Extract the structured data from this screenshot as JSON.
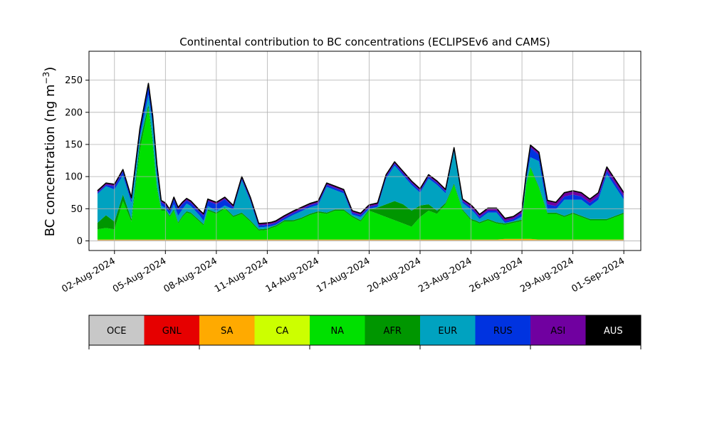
{
  "chart_data": {
    "type": "area",
    "stacked": true,
    "title": "Continental contribution to BC concentrations (ECLIPSEv6 and CAMS)",
    "ylabel": "BC concentration (ng m⁻³)",
    "xlabel": "",
    "ylim": [
      -15,
      295
    ],
    "xlim": [
      "2024-07-31T12:00",
      "2024-09-02T00:00"
    ],
    "y_ticks": [
      0,
      50,
      100,
      150,
      200,
      250
    ],
    "x_ticks": [
      "02-Aug-2024",
      "05-Aug-2024",
      "08-Aug-2024",
      "11-Aug-2024",
      "14-Aug-2024",
      "17-Aug-2024",
      "20-Aug-2024",
      "23-Aug-2024",
      "26-Aug-2024",
      "29-Aug-2024",
      "01-Sep-2024"
    ],
    "grid": true,
    "x": [
      "2024-08-01T00:00",
      "2024-08-01T12:00",
      "2024-08-02T00:00",
      "2024-08-02T12:00",
      "2024-08-03T00:00",
      "2024-08-03T12:00",
      "2024-08-04T00:00",
      "2024-08-04T06:00",
      "2024-08-04T12:00",
      "2024-08-04T18:00",
      "2024-08-05T00:00",
      "2024-08-05T06:00",
      "2024-08-05T12:00",
      "2024-08-05T18:00",
      "2024-08-06T00:00",
      "2024-08-06T06:00",
      "2024-08-06T12:00",
      "2024-08-07T00:00",
      "2024-08-07T06:00",
      "2024-08-07T12:00",
      "2024-08-08T00:00",
      "2024-08-08T12:00",
      "2024-08-09T00:00",
      "2024-08-09T12:00",
      "2024-08-10T00:00",
      "2024-08-10T12:00",
      "2024-08-11T00:00",
      "2024-08-11T06:00",
      "2024-08-11T12:00",
      "2024-08-12T00:00",
      "2024-08-12T12:00",
      "2024-08-13T00:00",
      "2024-08-13T12:00",
      "2024-08-14T00:00",
      "2024-08-14T12:00",
      "2024-08-15T00:00",
      "2024-08-15T12:00",
      "2024-08-16T00:00",
      "2024-08-16T12:00",
      "2024-08-17T00:00",
      "2024-08-17T12:00",
      "2024-08-18T00:00",
      "2024-08-18T12:00",
      "2024-08-19T00:00",
      "2024-08-19T12:00",
      "2024-08-20T00:00",
      "2024-08-20T12:00",
      "2024-08-21T00:00",
      "2024-08-21T12:00",
      "2024-08-22T00:00",
      "2024-08-22T12:00",
      "2024-08-23T00:00",
      "2024-08-23T06:00",
      "2024-08-23T12:00",
      "2024-08-24T00:00",
      "2024-08-24T12:00",
      "2024-08-25T00:00",
      "2024-08-25T12:00",
      "2024-08-26T00:00",
      "2024-08-26T06:00",
      "2024-08-26T12:00",
      "2024-08-27T00:00",
      "2024-08-27T12:00",
      "2024-08-28T00:00",
      "2024-08-28T12:00",
      "2024-08-29T00:00",
      "2024-08-29T12:00",
      "2024-08-30T00:00",
      "2024-08-30T12:00",
      "2024-08-31T00:00",
      "2024-08-31T12:00",
      "2024-09-01T00:00"
    ],
    "series": [
      {
        "name": "OCE",
        "color": "#c8c8c8",
        "values": [
          1,
          1,
          1,
          1,
          1,
          1,
          1,
          1,
          1,
          1,
          1,
          1,
          1,
          1,
          1,
          1,
          1,
          1,
          1,
          1,
          1,
          1,
          1,
          1,
          1,
          1,
          1,
          1,
          1,
          1,
          1,
          1,
          1,
          1,
          1,
          1,
          1,
          1,
          1,
          1,
          1,
          1,
          1,
          1,
          1,
          1,
          1,
          1,
          1,
          1,
          1,
          1,
          1,
          1,
          1,
          1,
          1,
          1,
          1,
          1,
          1,
          1,
          1,
          1,
          1,
          1,
          1,
          1,
          1,
          1,
          1,
          1
        ]
      },
      {
        "name": "GNL",
        "color": "#e60000",
        "values": [
          0,
          0,
          0,
          0,
          0,
          0,
          0,
          0,
          0,
          0,
          0,
          0,
          0,
          0,
          0,
          0,
          0,
          0,
          0,
          0,
          0,
          0,
          0,
          0,
          0,
          0,
          0,
          0,
          0,
          0,
          0,
          0,
          0,
          0,
          0,
          0,
          0,
          0,
          0,
          0,
          0,
          0,
          0,
          0,
          0,
          0,
          0,
          0,
          0,
          0,
          0,
          0,
          0,
          0,
          0,
          0,
          0,
          0,
          0,
          0,
          0,
          0,
          0,
          0,
          0,
          0,
          0,
          0,
          0,
          0,
          0,
          0
        ]
      },
      {
        "name": "SA",
        "color": "#ffaa00",
        "values": [
          1,
          1,
          1,
          1,
          1,
          1,
          1,
          1,
          1,
          1,
          1,
          1,
          1,
          1,
          1,
          1,
          1,
          1,
          1,
          1,
          1,
          1,
          1,
          1,
          1,
          1,
          1,
          1,
          1,
          1,
          1,
          1,
          1,
          1,
          1,
          1,
          1,
          1,
          1,
          1,
          1,
          1,
          1,
          1,
          1,
          1,
          1,
          1,
          1,
          1,
          1,
          1,
          1,
          1,
          1,
          1,
          2,
          2,
          2,
          2,
          2,
          1,
          1,
          1,
          1,
          1,
          1,
          1,
          1,
          1,
          1,
          1
        ]
      },
      {
        "name": "CA",
        "color": "#ccff00",
        "values": [
          0,
          0,
          0,
          0,
          0,
          0,
          0,
          0,
          0,
          0,
          0,
          0,
          0,
          0,
          0,
          0,
          0,
          0,
          0,
          0,
          0,
          0,
          0,
          0,
          0,
          0,
          0,
          0,
          0,
          0,
          0,
          0,
          0,
          0,
          0,
          0,
          0,
          0,
          0,
          0,
          0,
          0,
          0,
          0,
          0,
          0,
          0,
          0,
          0,
          0,
          0,
          0,
          0,
          0,
          0,
          0,
          0,
          0,
          0,
          0,
          0,
          0,
          0,
          0,
          0,
          0,
          0,
          0,
          0,
          0,
          0,
          0
        ]
      },
      {
        "name": "NA",
        "color": "#00e000",
        "values": [
          16,
          18,
          16,
          60,
          28,
          140,
          205,
          150,
          80,
          45,
          45,
          35,
          45,
          25,
          35,
          42,
          40,
          28,
          22,
          45,
          40,
          48,
          35,
          40,
          28,
          14,
          15,
          18,
          20,
          28,
          28,
          32,
          38,
          42,
          40,
          45,
          45,
          35,
          28,
          45,
          40,
          35,
          30,
          25,
          20,
          35,
          45,
          40,
          55,
          85,
          45,
          30,
          28,
          25,
          30,
          25,
          22,
          25,
          28,
          85,
          110,
          80,
          40,
          40,
          35,
          40,
          35,
          30,
          30,
          30,
          35,
          40
        ]
      },
      {
        "name": "AFR",
        "color": "#009600",
        "values": [
          10,
          20,
          12,
          10,
          4,
          12,
          5,
          5,
          3,
          3,
          2,
          2,
          2,
          2,
          2,
          2,
          2,
          2,
          2,
          2,
          2,
          2,
          2,
          2,
          2,
          2,
          2,
          2,
          2,
          2,
          2,
          2,
          2,
          2,
          2,
          2,
          2,
          2,
          2,
          2,
          10,
          20,
          30,
          30,
          25,
          18,
          10,
          5,
          2,
          2,
          2,
          2,
          2,
          2,
          2,
          2,
          2,
          2,
          2,
          2,
          2,
          2,
          2,
          2,
          2,
          2,
          2,
          2,
          2,
          2,
          2,
          2
        ]
      },
      {
        "name": "EUR",
        "color": "#00a2c0",
        "values": [
          45,
          45,
          50,
          30,
          25,
          8,
          15,
          25,
          20,
          5,
          2,
          2,
          8,
          10,
          10,
          12,
          10,
          8,
          5,
          5,
          3,
          3,
          10,
          50,
          30,
          3,
          3,
          1,
          1,
          1,
          8,
          10,
          10,
          10,
          40,
          30,
          25,
          2,
          5,
          1,
          1,
          40,
          55,
          45,
          40,
          20,
          40,
          40,
          15,
          50,
          10,
          15,
          10,
          5,
          10,
          15,
          1,
          1,
          5,
          5,
          15,
          40,
          5,
          5,
          25,
          20,
          25,
          20,
          30,
          70,
          45,
          20
        ]
      },
      {
        "name": "RUS",
        "color": "#0033e0",
        "values": [
          2,
          2,
          5,
          6,
          5,
          10,
          15,
          10,
          10,
          5,
          5,
          5,
          8,
          10,
          8,
          5,
          5,
          5,
          8,
          8,
          10,
          10,
          3,
          3,
          3,
          3,
          3,
          3,
          3,
          3,
          3,
          3,
          3,
          3,
          3,
          3,
          3,
          3,
          3,
          3,
          3,
          3,
          3,
          3,
          3,
          3,
          3,
          3,
          3,
          3,
          3,
          3,
          3,
          3,
          3,
          3,
          3,
          3,
          5,
          5,
          15,
          10,
          8,
          5,
          5,
          8,
          5,
          5,
          5,
          5,
          5,
          5
        ]
      },
      {
        "name": "ASI",
        "color": "#7000a0",
        "values": [
          2,
          2,
          2,
          2,
          2,
          2,
          2,
          2,
          2,
          2,
          2,
          2,
          2,
          2,
          2,
          2,
          2,
          2,
          2,
          2,
          2,
          2,
          2,
          2,
          2,
          2,
          2,
          2,
          2,
          2,
          2,
          2,
          2,
          2,
          2,
          2,
          2,
          2,
          2,
          2,
          2,
          2,
          2,
          2,
          2,
          2,
          2,
          2,
          2,
          2,
          2,
          3,
          3,
          3,
          3,
          3,
          3,
          3,
          3,
          3,
          3,
          3,
          5,
          5,
          5,
          5,
          5,
          5,
          5,
          5,
          5,
          5
        ]
      },
      {
        "name": "AUS",
        "color": "#000000",
        "values": [
          1,
          1,
          1,
          1,
          1,
          1,
          1,
          1,
          1,
          1,
          1,
          1,
          1,
          1,
          1,
          1,
          1,
          1,
          1,
          1,
          1,
          1,
          1,
          1,
          1,
          1,
          1,
          1,
          1,
          1,
          1,
          1,
          1,
          1,
          1,
          1,
          1,
          1,
          1,
          1,
          1,
          1,
          1,
          1,
          1,
          1,
          1,
          1,
          1,
          1,
          1,
          1,
          1,
          1,
          1,
          1,
          1,
          1,
          1,
          1,
          1,
          1,
          1,
          1,
          1,
          1,
          1,
          1,
          1,
          1,
          1,
          1
        ]
      }
    ]
  },
  "colorbar": {
    "labels": [
      "OCE",
      "GNL",
      "SA",
      "CA",
      "NA",
      "AFR",
      "EUR",
      "RUS",
      "ASI",
      "AUS"
    ],
    "colors": [
      "#c8c8c8",
      "#e60000",
      "#ffaa00",
      "#ccff00",
      "#00e000",
      "#009600",
      "#00a2c0",
      "#0033e0",
      "#7000a0",
      "#000000"
    ],
    "label_colors": [
      "#000000",
      "#000000",
      "#000000",
      "#000000",
      "#000000",
      "#000000",
      "#000000",
      "#000000",
      "#000000",
      "#ffffff"
    ]
  }
}
